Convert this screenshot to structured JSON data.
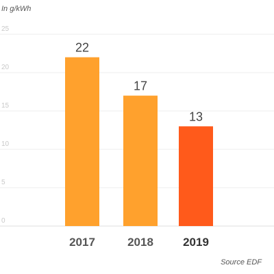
{
  "chart_data": {
    "type": "bar",
    "unit": "In g/kWh",
    "source": "Source EDF",
    "categories": [
      "2017",
      "2018",
      "2019"
    ],
    "values": [
      22,
      17,
      13
    ],
    "value_labels": [
      "22",
      "17",
      "13"
    ],
    "bar_colors": [
      "#FFA12D",
      "#FFA12D",
      "#FF5A1B"
    ],
    "ylim": [
      0,
      25
    ],
    "yticks": [
      "0",
      "5",
      "10",
      "15",
      "20",
      "25"
    ],
    "grid": true,
    "legend": "none",
    "highlight_category": "2019"
  }
}
